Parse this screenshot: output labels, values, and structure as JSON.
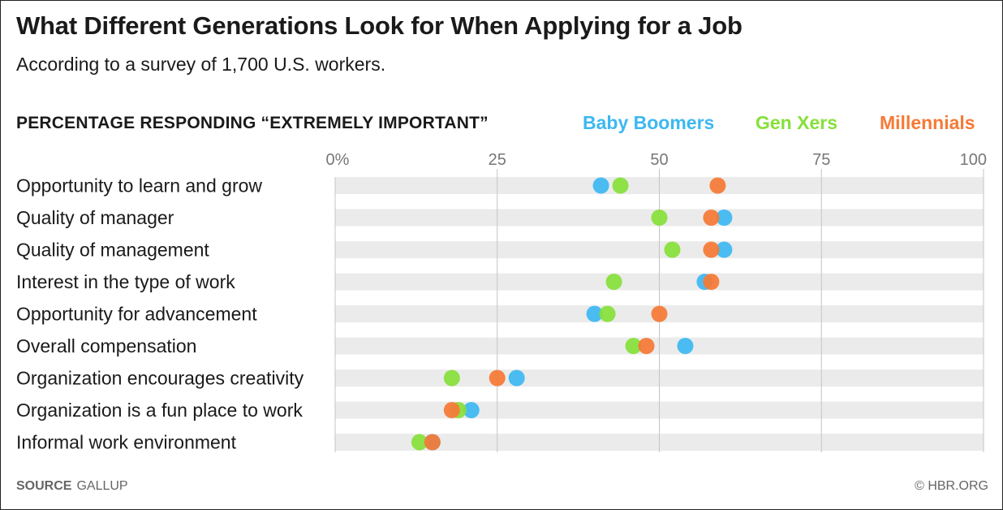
{
  "header": {
    "title": "What Different Generations Look for When Applying for a Job",
    "subtitle": "According to a survey of 1,700 U.S. workers.",
    "section_label": "PERCENTAGE RESPONDING “EXTREMELY IMPORTANT”"
  },
  "footer": {
    "source_key": "SOURCE",
    "source_value": "GALLUP",
    "credit": "© HBR.ORG"
  },
  "colors": {
    "baby_boomers": "#3db8f2",
    "gen_xers": "#86e03a",
    "millennials": "#f57a36",
    "row_band": "#ebebeb",
    "gridline": "#c4c4c4"
  },
  "chart_data": {
    "type": "scatter",
    "title": "What Different Generations Look for When Applying for a Job",
    "subtitle": "According to a survey of 1,700 U.S. workers.",
    "xlabel": "PERCENTAGE RESPONDING “EXTREMELY IMPORTANT”",
    "xlim": [
      0,
      100
    ],
    "x_ticks": [
      0,
      25,
      50,
      75,
      100
    ],
    "x_tick_labels": [
      "0%",
      "25",
      "50",
      "75",
      "100"
    ],
    "grid": true,
    "legend_position": "top-right",
    "categories": [
      "Opportunity to learn and grow",
      "Quality of manager",
      "Quality of management",
      "Interest in the type of work",
      "Opportunity for advancement",
      "Overall compensation",
      "Organization encourages creativity",
      "Organization is a fun place to work",
      "Informal work environment"
    ],
    "series": [
      {
        "name": "Baby Boomers",
        "color": "#3db8f2",
        "values": [
          41,
          60,
          60,
          57,
          40,
          54,
          28,
          21,
          15
        ]
      },
      {
        "name": "Gen Xers",
        "color": "#86e03a",
        "values": [
          44,
          50,
          52,
          43,
          42,
          46,
          18,
          19,
          13
        ]
      },
      {
        "name": "Millennials",
        "color": "#f57a36",
        "values": [
          59,
          58,
          58,
          58,
          50,
          48,
          25,
          18,
          15
        ]
      }
    ]
  }
}
